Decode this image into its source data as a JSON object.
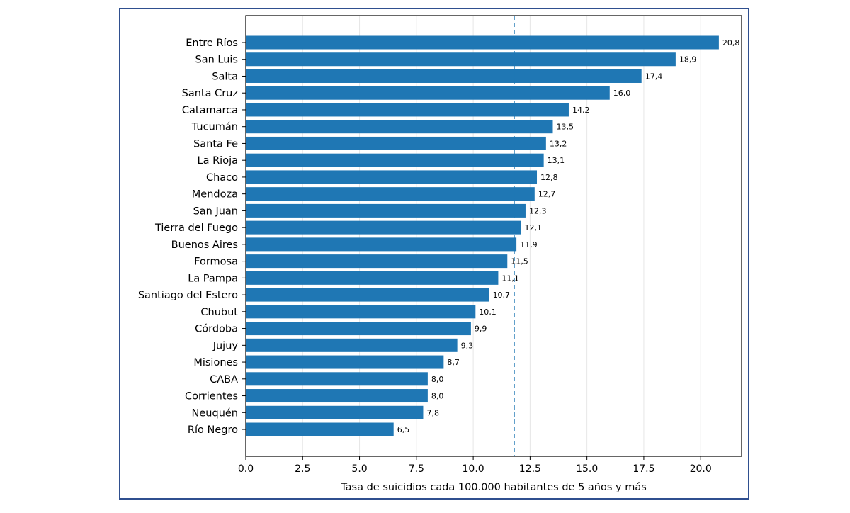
{
  "chart_data": {
    "type": "bar",
    "orientation": "horizontal",
    "categories": [
      "Entre Ríos",
      "San Luis",
      "Salta",
      "Santa Cruz",
      "Catamarca",
      "Tucumán",
      "Santa Fe",
      "La Rioja",
      "Chaco",
      "Mendoza",
      "San Juan",
      "Tierra del Fuego",
      "Buenos Aires",
      "Formosa",
      "La Pampa",
      "Santiago del Estero",
      "Chubut",
      "Córdoba",
      "Jujuy",
      "Misiones",
      "CABA",
      "Corrientes",
      "Neuquén",
      "Río Negro"
    ],
    "values": [
      20.8,
      18.9,
      17.4,
      16.0,
      14.2,
      13.5,
      13.2,
      13.1,
      12.8,
      12.7,
      12.3,
      12.1,
      11.9,
      11.5,
      11.1,
      10.7,
      10.1,
      9.9,
      9.3,
      8.7,
      8.0,
      8.0,
      7.8,
      6.5
    ],
    "value_labels": [
      "20,8",
      "18,9",
      "17,4",
      "16,0",
      "14,2",
      "13,5",
      "13,2",
      "13,1",
      "12,8",
      "12,7",
      "12,3",
      "12,1",
      "11,9",
      "11,5",
      "11,1",
      "10,7",
      "10,1",
      "9,9",
      "9,3",
      "8,7",
      "8,0",
      "8,0",
      "7,8",
      "6,5"
    ],
    "title": "",
    "xlabel": "Tasa de suicidios cada 100.000 habitantes de 5 años y más",
    "ylabel": "",
    "xlim": [
      0,
      21.8
    ],
    "xticks": [
      0.0,
      2.5,
      5.0,
      7.5,
      10.0,
      12.5,
      15.0,
      17.5,
      20.0
    ],
    "xtick_labels": [
      "0.0",
      "2.5",
      "5.0",
      "7.5",
      "10.0",
      "12.5",
      "15.0",
      "17.5",
      "20.0"
    ],
    "reference_line": 11.8,
    "grid": "vertical",
    "bar_color": "#1f77b4",
    "reference_line_color": "#1f77b4"
  }
}
